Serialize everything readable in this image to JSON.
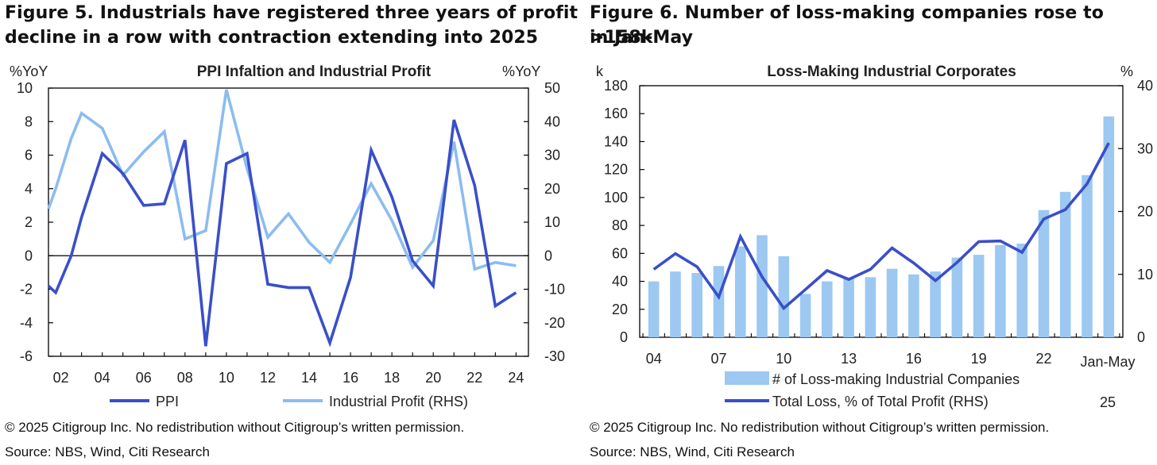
{
  "figure5": {
    "title_line1": "Figure 5. Industrials have registered three years of profit",
    "title_line2": "decline in a row with contraction extending into 2025",
    "copyright": "© 2025 Citigroup Inc. No redistribution without Citigroup’s written permission.",
    "source": "Source: NBS, Wind, Citi Research"
  },
  "figure6": {
    "title_line1": "Figure 6. Number of loss-making companies rose to >158k",
    "title_line2": "in Jan-May",
    "copyright": "© 2025 Citigroup Inc. No redistribution without Citigroup’s written permission.",
    "source": "Source: NBS, Wind, Citi Research"
  },
  "chart_data": [
    {
      "type": "line",
      "title": "PPI Infaltion and Industrial Profit",
      "ylabel_left": "%YoY",
      "ylabel_right": "%YoY",
      "ylim_left": [
        -6,
        10
      ],
      "ylim_right": [
        -30,
        50
      ],
      "yticks_left": [
        "10",
        "8",
        "6",
        "4",
        "2",
        "0",
        "-2",
        "-4",
        "-6"
      ],
      "yticks_right": [
        "50",
        "40",
        "30",
        "20",
        "10",
        "0",
        "-10",
        "-20",
        "-30"
      ],
      "xlim": [
        2001.4,
        2024.6
      ],
      "xticks": [
        "02",
        "04",
        "06",
        "08",
        "10",
        "12",
        "14",
        "16",
        "18",
        "20",
        "22",
        "24"
      ],
      "grid": false,
      "legend": "bottom",
      "series": [
        {
          "name": "PPI",
          "axis": "left",
          "color": "#3a4fc8",
          "x": [
            2001.4,
            2001.75,
            2002.5,
            2003.0,
            2004.0,
            2005.0,
            2006.0,
            2007.0,
            2008.0,
            2009.0,
            2010.0,
            2011.0,
            2012.0,
            2013.0,
            2014.0,
            2015.0,
            2016.0,
            2017.0,
            2018.0,
            2019.0,
            2020.0,
            2021.0,
            2022.0,
            2023.0,
            2024.0
          ],
          "y": [
            -1.8,
            -2.2,
            0.0,
            2.3,
            6.1,
            4.9,
            3.0,
            3.1,
            6.9,
            -5.4,
            5.5,
            6.1,
            -1.7,
            -1.9,
            -1.9,
            -5.2,
            -1.3,
            6.3,
            3.5,
            -0.3,
            -1.8,
            8.1,
            4.2,
            -3.0,
            -2.2
          ]
        },
        {
          "name": "Industrial Profit (RHS)",
          "axis": "right",
          "color": "#8cbcf0",
          "x": [
            2001.4,
            2001.75,
            2002.5,
            2003.0,
            2004.0,
            2005.0,
            2006.0,
            2007.0,
            2008.0,
            2009.0,
            2010.0,
            2011.0,
            2012.0,
            2013.0,
            2014.0,
            2015.0,
            2016.0,
            2017.0,
            2018.0,
            2019.0,
            2020.0,
            2021.0,
            2022.0,
            2023.0,
            2024.0
          ],
          "y": [
            14.0,
            20.0,
            35.0,
            42.5,
            38.0,
            24.0,
            31.0,
            37.0,
            5.0,
            7.5,
            49.5,
            26.0,
            5.5,
            12.5,
            4.0,
            -2.0,
            9.5,
            21.5,
            10.5,
            -3.5,
            4.5,
            34.0,
            -4.0,
            -2.0,
            -3.0
          ]
        }
      ]
    },
    {
      "type": "bar",
      "title": "Loss-Making Industrial Corporates",
      "ylabel_left": "k",
      "ylabel_right": "%",
      "ylim_left": [
        0,
        180
      ],
      "ylim_right": [
        0,
        40
      ],
      "yticks_left": [
        "180",
        "160",
        "140",
        "120",
        "100",
        "80",
        "60",
        "40",
        "20",
        "0"
      ],
      "yticks_right": [
        "40",
        "30",
        "20",
        "10",
        "0"
      ],
      "categories": [
        "04",
        "05",
        "06",
        "07",
        "08",
        "09",
        "10",
        "11",
        "12",
        "13",
        "14",
        "15",
        "16",
        "17",
        "18",
        "19",
        "20",
        "21",
        "22",
        "23",
        "24",
        "Jan-May 25"
      ],
      "xtick_labels": [
        "04",
        "07",
        "10",
        "13",
        "16",
        "19",
        "22"
      ],
      "xtick_last_line1": "Jan-May",
      "xtick_last_line2": "25",
      "grid": false,
      "legend": "bottom",
      "series": [
        {
          "name": "# of Loss-making Industrial Companies",
          "kind": "bar",
          "axis": "left",
          "color": "#9cc8f2",
          "values": [
            40,
            47,
            46,
            51,
            65,
            73,
            58,
            31,
            40,
            42,
            43,
            49,
            45,
            47,
            57,
            59,
            66,
            67,
            91,
            104,
            116,
            158
          ]
        },
        {
          "name": "Total Loss, % of Total Profit (RHS)",
          "kind": "line",
          "axis": "right",
          "color": "#3a4fc8",
          "values": [
            10.8,
            13.3,
            11.2,
            6.4,
            16.0,
            9.6,
            4.6,
            7.6,
            10.6,
            9.2,
            10.8,
            14.2,
            11.8,
            9.0,
            11.9,
            15.2,
            15.3,
            13.5,
            18.8,
            20.3,
            24.4,
            30.9
          ]
        }
      ]
    }
  ]
}
